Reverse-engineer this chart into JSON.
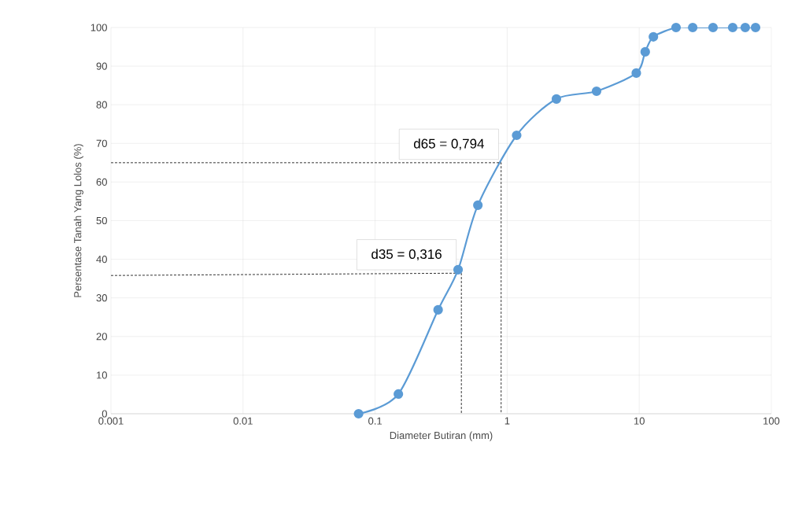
{
  "chart_data": {
    "type": "line",
    "xlabel": "Diameter Butiran (mm)",
    "ylabel": "Persentase Tanah Yang Lolos (%)",
    "log": "x",
    "grid": true,
    "xlim": [
      0.001,
      100
    ],
    "xticks": [
      0.001,
      0.01,
      0.1,
      1,
      10,
      100
    ],
    "ylim": [
      0,
      100
    ],
    "yticks": [
      0,
      10,
      20,
      30,
      40,
      50,
      60,
      70,
      80,
      90,
      100
    ],
    "series": [
      {
        "color": "#5b9bd5",
        "marker": "circle",
        "line_style": "solid",
        "x": [
          0.075,
          0.15,
          0.3,
          0.425,
          0.6,
          1.18,
          2.36,
          4.75,
          9.5,
          11.1,
          12.8,
          19,
          25.4,
          36.2,
          51,
          63.5,
          76
        ],
        "values": [
          0,
          5.1,
          26.9,
          37.3,
          54,
          72.1,
          81.5,
          83.5,
          88.2,
          93.7,
          97.6,
          100,
          100,
          100,
          100,
          100,
          100
        ]
      },
      {
        "color": "#000000",
        "marker": "none",
        "line_style": "dashed",
        "x": [
          0.001,
          0.9,
          0.9
        ],
        "values": [
          65,
          65,
          0
        ]
      },
      {
        "color": "#000000",
        "marker": "none",
        "line_style": "dashed",
        "x": [
          0.001,
          0.43,
          0.45,
          0.45
        ],
        "values": [
          35.8,
          36.4,
          36.4,
          0
        ]
      }
    ],
    "annotations": [
      {
        "text": "d65 = 0,794",
        "x": 0.9,
        "y": 65
      },
      {
        "text": "d35 = 0,316",
        "x": 0.43,
        "y": 36.4
      }
    ]
  }
}
